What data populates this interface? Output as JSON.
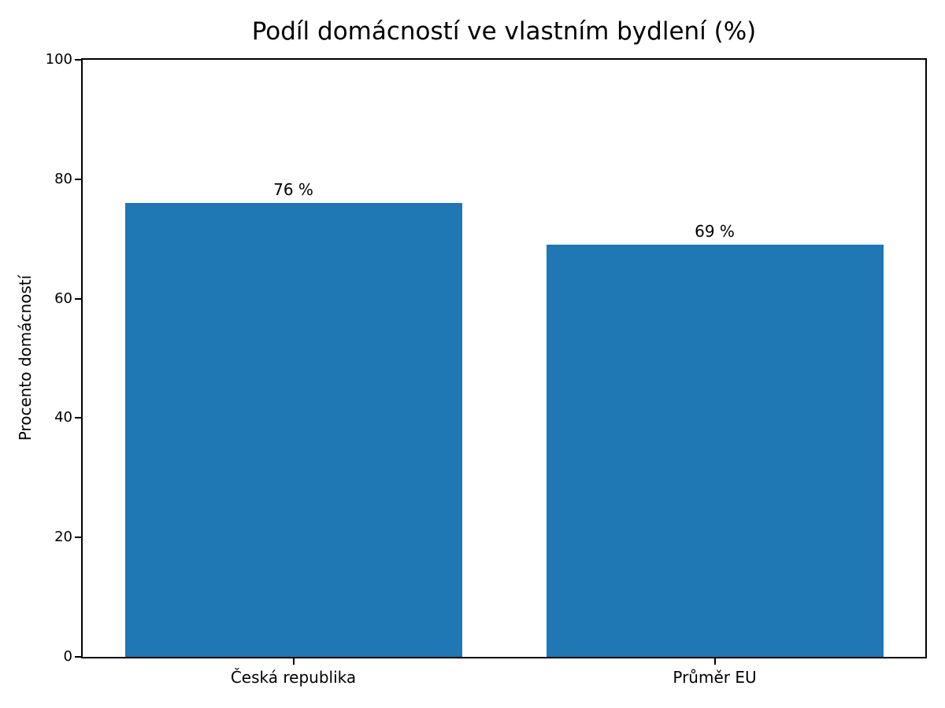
{
  "figure": {
    "background_color": "#ffffff",
    "text_color": "#000000"
  },
  "chart_data": {
    "type": "bar",
    "title": "Podíl domácností ve vlastním bydlení (%)",
    "categories": [
      "Česká republika",
      "Průměr EU"
    ],
    "values": [
      76,
      69
    ],
    "value_labels": [
      "76 %",
      "69 %"
    ],
    "xlabel": "",
    "ylabel": "Procento domácností",
    "ylim": [
      0,
      100
    ],
    "yticks": [
      0,
      20,
      40,
      60,
      80,
      100
    ],
    "bar_color": "#1f77b4",
    "bar_rel_width": 0.8,
    "grid": false,
    "legend": "none"
  }
}
